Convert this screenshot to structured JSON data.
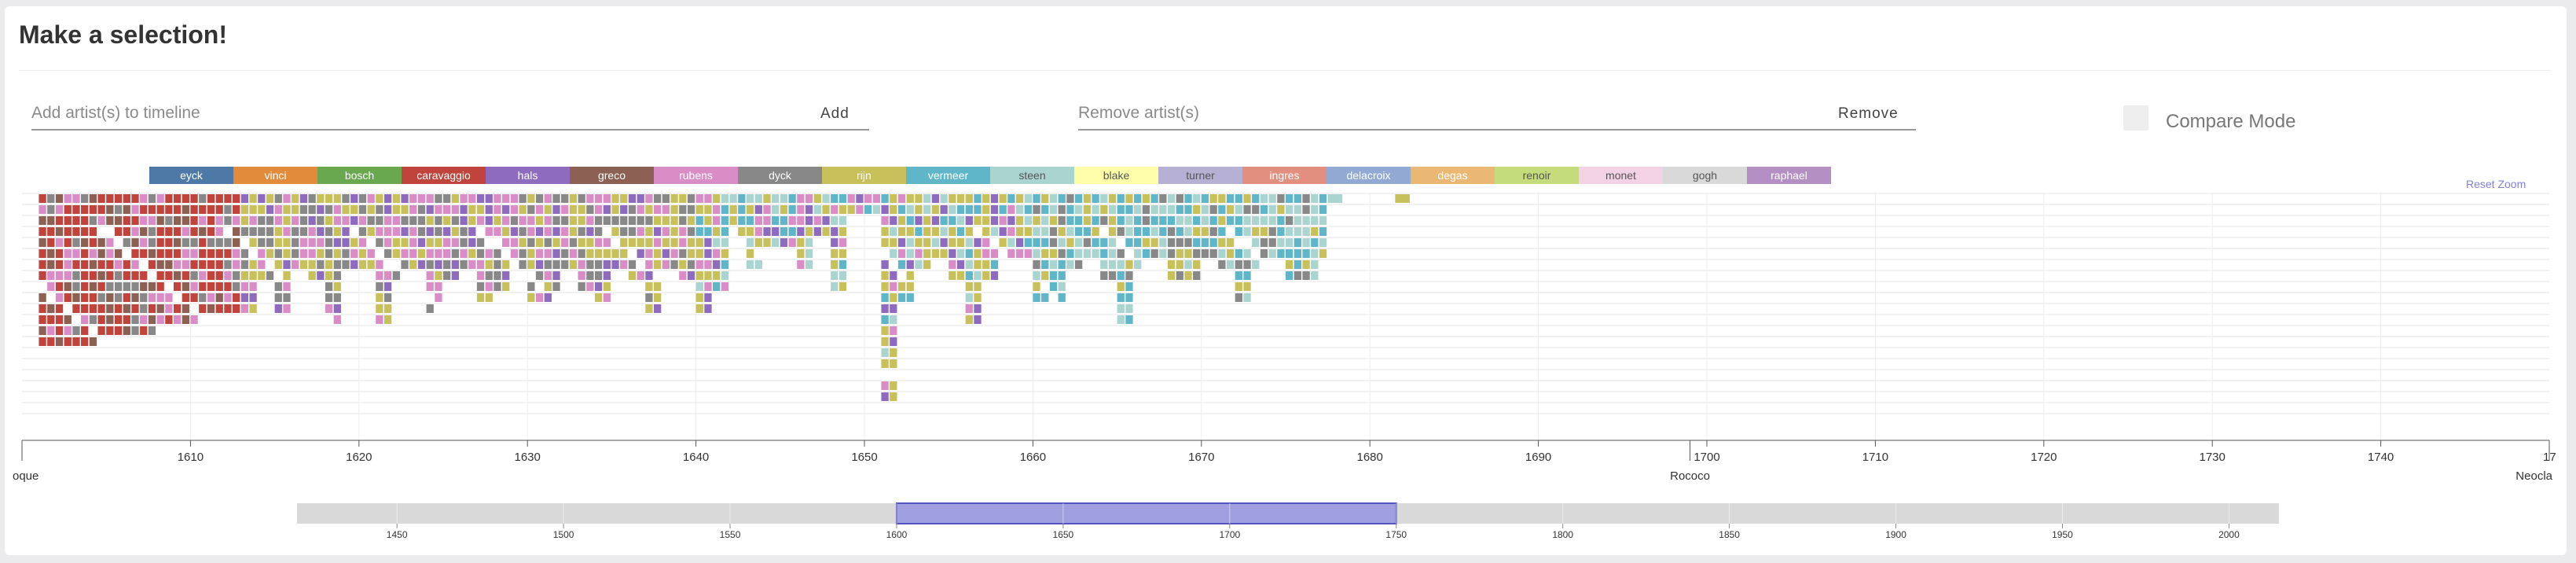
{
  "header": {
    "title": "Make a selection!"
  },
  "add_panel": {
    "placeholder": "Add artist(s) to timeline",
    "button_label": "Add"
  },
  "remove_panel": {
    "placeholder": "Remove artist(s)",
    "button_label": "Remove"
  },
  "compare": {
    "label": "Compare Mode",
    "checked": false
  },
  "reset_zoom_label": "Reset Zoom",
  "legend": [
    {
      "name": "eyck",
      "color": "#4e79a7"
    },
    {
      "name": "vinci",
      "color": "#e28b3a"
    },
    {
      "name": "bosch",
      "color": "#6aa84f"
    },
    {
      "name": "caravaggio",
      "color": "#c0443b"
    },
    {
      "name": "hals",
      "color": "#8e6bbf"
    },
    {
      "name": "greco",
      "color": "#8c6052"
    },
    {
      "name": "rubens",
      "color": "#d98cc6"
    },
    {
      "name": "dyck",
      "color": "#888888"
    },
    {
      "name": "rijn",
      "color": "#c8c05a"
    },
    {
      "name": "vermeer",
      "color": "#5fb6c8"
    },
    {
      "name": "steen",
      "color": "#a9d4d0"
    },
    {
      "name": "blake",
      "color": "#ffffaa"
    },
    {
      "name": "turner",
      "color": "#b7b0d5"
    },
    {
      "name": "ingres",
      "color": "#e28f80"
    },
    {
      "name": "delacroix",
      "color": "#92a9d4"
    },
    {
      "name": "degas",
      "color": "#eab872"
    },
    {
      "name": "renoir",
      "color": "#c4dc7c"
    },
    {
      "name": "monet",
      "color": "#f4d2e6"
    },
    {
      "name": "gogh",
      "color": "#d9d9d9"
    },
    {
      "name": "raphael",
      "color": "#b38fc3"
    }
  ],
  "timeline": {
    "x_ticks": [
      1610,
      1620,
      1630,
      1640,
      1650,
      1660,
      1670,
      1680,
      1690,
      1700,
      1710,
      1720,
      1730,
      1740
    ],
    "x_range": [
      1600,
      1750
    ],
    "edge_label_right": "17",
    "period_labels": [
      {
        "text": "oque",
        "year": 1600
      },
      {
        "text": "Rococo",
        "year": 1699
      },
      {
        "text": "Neocla",
        "year": 1750
      }
    ]
  },
  "brush": {
    "ticks": [
      1450,
      1500,
      1550,
      1600,
      1650,
      1700,
      1750,
      1800,
      1850,
      1900,
      1950,
      2000
    ],
    "domain": [
      1420,
      2015
    ],
    "selection": [
      1600,
      1750
    ]
  }
}
